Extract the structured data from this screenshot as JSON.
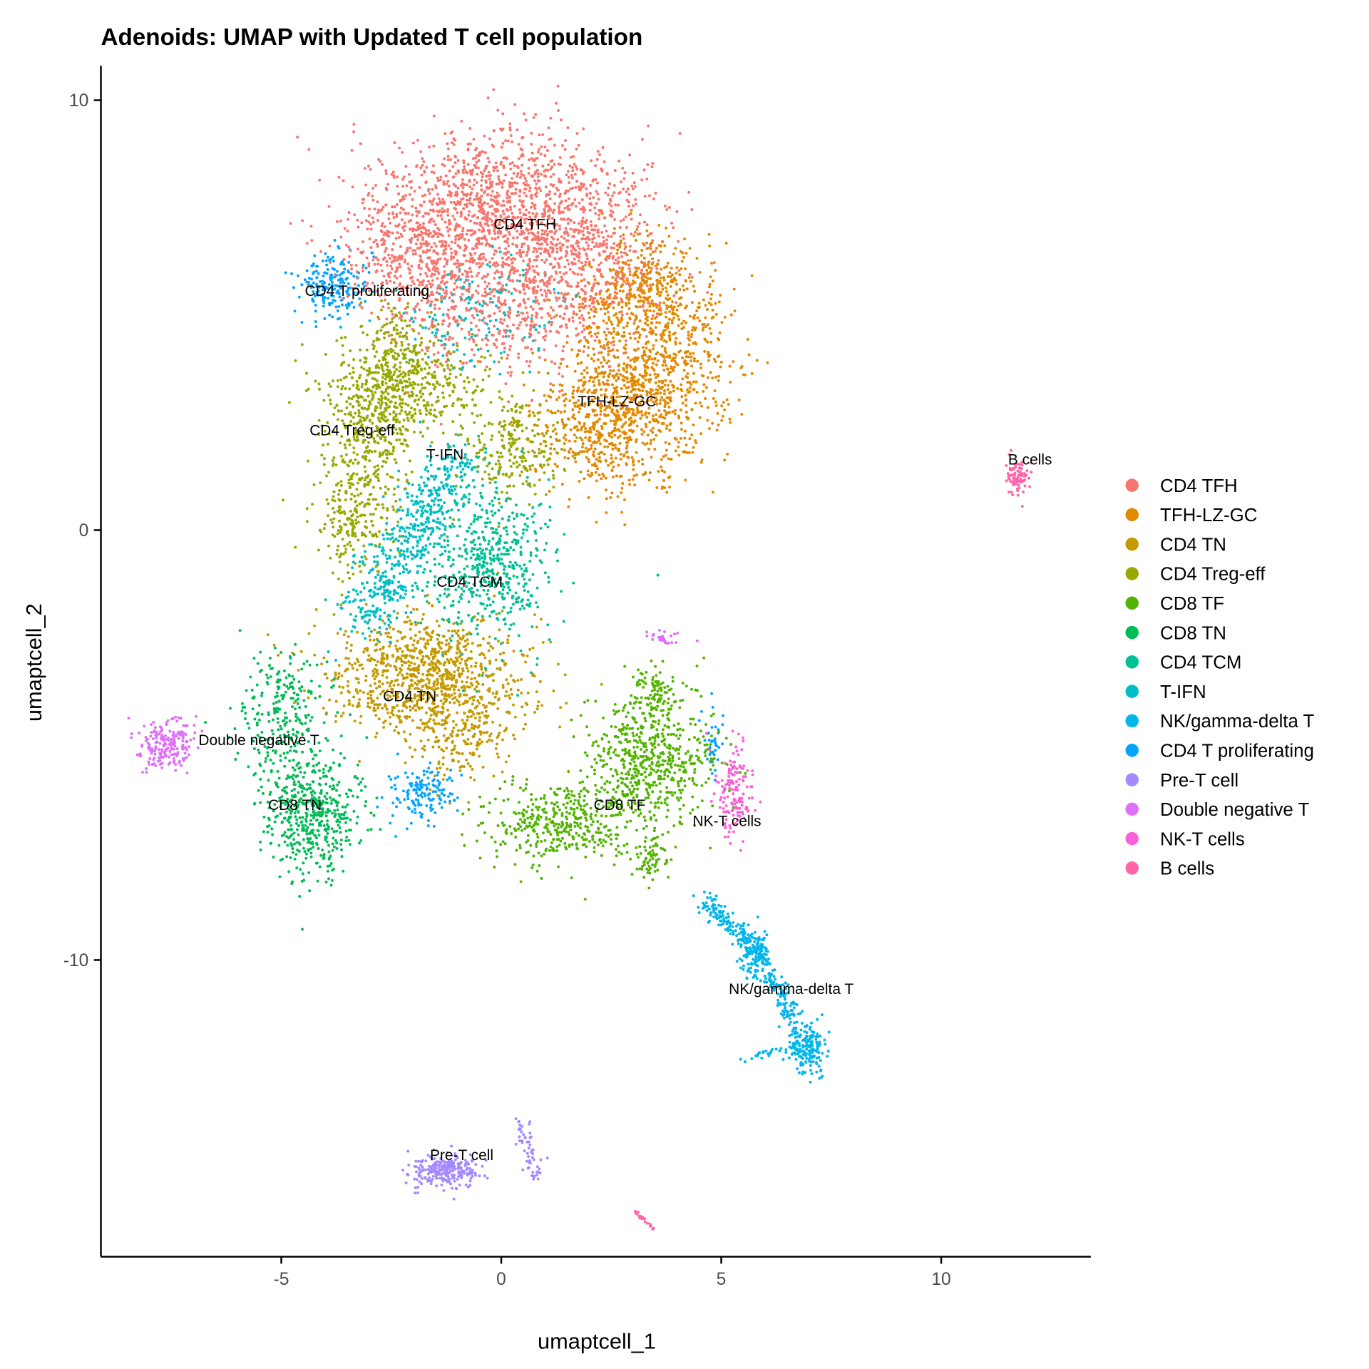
{
  "chart_data": {
    "type": "scatter",
    "title": "Adenoids: UMAP with Updated T cell population",
    "xlabel": "umaptcell_1",
    "ylabel": "umaptcell_2",
    "xlim": [
      -9.1,
      13.4
    ],
    "ylim": [
      -16.9,
      10.8
    ],
    "xticks": [
      -5,
      0,
      5,
      10
    ],
    "yticks": [
      -10,
      0,
      10
    ],
    "grid": false,
    "legend_position": "right",
    "clusters": [
      {
        "name": "CD4 TFH",
        "color": "#F8766D",
        "label_at": [
          0.54,
          7.12
        ],
        "components": [
          {
            "type": "blob",
            "center": [
              0.0,
              7.6
            ],
            "sd": [
              1.5,
              0.9
            ],
            "n": 1100
          },
          {
            "type": "blob",
            "center": [
              -1.8,
              6.5
            ],
            "sd": [
              0.9,
              0.8
            ],
            "n": 500
          },
          {
            "type": "blob",
            "center": [
              1.6,
              6.0
            ],
            "sd": [
              1.0,
              1.0
            ],
            "n": 600
          },
          {
            "type": "blob",
            "center": [
              -0.3,
              5.2
            ],
            "sd": [
              1.0,
              0.8
            ],
            "n": 350
          }
        ]
      },
      {
        "name": "TFH-LZ-GC",
        "color": "#E38900",
        "label_at": [
          2.63,
          3.0
        ],
        "components": [
          {
            "type": "blob",
            "center": [
              3.4,
              4.0
            ],
            "sd": [
              0.9,
              1.1
            ],
            "n": 900
          },
          {
            "type": "blob",
            "center": [
              2.4,
              2.3
            ],
            "sd": [
              0.9,
              0.7
            ],
            "n": 500
          },
          {
            "type": "blob",
            "center": [
              3.2,
              5.8
            ],
            "sd": [
              0.6,
              0.6
            ],
            "n": 200
          }
        ]
      },
      {
        "name": "CD4 TN",
        "color": "#C49A00",
        "label_at": [
          -2.08,
          -3.86
        ],
        "components": [
          {
            "type": "blob",
            "center": [
              -1.6,
              -3.4
            ],
            "sd": [
              1.1,
              0.7
            ],
            "n": 1000
          },
          {
            "type": "blob",
            "center": [
              -0.9,
              -4.9
            ],
            "sd": [
              0.5,
              0.5
            ],
            "n": 150
          }
        ]
      },
      {
        "name": "CD4 Treg-eff",
        "color": "#99A800",
        "label_at": [
          -3.39,
          2.33
        ],
        "components": [
          {
            "type": "strip",
            "from": [
              -2.3,
              4.8
            ],
            "to": [
              -3.5,
              -0.5
            ],
            "sd": 0.5,
            "n": 700
          },
          {
            "type": "blob",
            "center": [
              -2.2,
              3.3
            ],
            "sd": [
              0.9,
              0.6
            ],
            "n": 400
          },
          {
            "type": "blob",
            "center": [
              0.3,
              2.0
            ],
            "sd": [
              0.6,
              0.6
            ],
            "n": 250
          }
        ]
      },
      {
        "name": "CD8 TF",
        "color": "#53B400",
        "label_at": [
          2.69,
          -6.39
        ],
        "components": [
          {
            "type": "blob",
            "center": [
              3.4,
              -5.3
            ],
            "sd": [
              0.7,
              0.8
            ],
            "n": 600
          },
          {
            "type": "blob",
            "center": [
              1.4,
              -6.8
            ],
            "sd": [
              0.9,
              0.5
            ],
            "n": 400
          },
          {
            "type": "blob",
            "center": [
              3.5,
              -3.8
            ],
            "sd": [
              0.2,
              0.3
            ],
            "n": 80
          },
          {
            "type": "blob",
            "center": [
              3.4,
              -7.6
            ],
            "sd": [
              0.2,
              0.3
            ],
            "n": 60
          }
        ]
      },
      {
        "name": "CD8 TN",
        "color": "#00BC56",
        "label_at": [
          -4.69,
          -6.39
        ],
        "components": [
          {
            "type": "blob",
            "center": [
              -4.3,
              -6.6
            ],
            "sd": [
              0.55,
              0.7
            ],
            "n": 500
          },
          {
            "type": "blob",
            "center": [
              -5.0,
              -4.2
            ],
            "sd": [
              0.5,
              0.8
            ],
            "n": 250
          }
        ]
      },
      {
        "name": "CD4 TCM",
        "color": "#00C094",
        "label_at": [
          -0.72,
          -1.2
        ],
        "components": [
          {
            "type": "blob",
            "center": [
              -0.3,
              -0.8
            ],
            "sd": [
              0.7,
              0.9
            ],
            "n": 550
          }
        ]
      },
      {
        "name": "T-IFN",
        "color": "#00BFC4",
        "label_at": [
          -1.28,
          1.76
        ],
        "components": [
          {
            "type": "strip",
            "from": [
              -1.0,
              1.7
            ],
            "to": [
              -3.2,
              -2.2
            ],
            "sd": 0.35,
            "n": 550
          },
          {
            "type": "blob",
            "center": [
              -0.5,
              5.0
            ],
            "sd": [
              0.9,
              0.7
            ],
            "n": 150
          }
        ]
      },
      {
        "name": "NK/gamma-delta T",
        "color": "#00B6EB",
        "label_at": [
          6.59,
          -10.67
        ],
        "components": [
          {
            "type": "strip",
            "from": [
              4.6,
              -8.6
            ],
            "to": [
              6.0,
              -10.0
            ],
            "sd": 0.12,
            "n": 150
          },
          {
            "type": "blob",
            "center": [
              5.7,
              -9.8
            ],
            "sd": [
              0.2,
              0.3
            ],
            "n": 120
          },
          {
            "type": "strip",
            "from": [
              6.0,
              -10.2
            ],
            "to": [
              6.9,
              -12.0
            ],
            "sd": 0.12,
            "n": 130
          },
          {
            "type": "blob",
            "center": [
              7.0,
              -12.1
            ],
            "sd": [
              0.2,
              0.3
            ],
            "n": 150
          },
          {
            "type": "strip",
            "from": [
              5.5,
              -12.3
            ],
            "to": [
              6.8,
              -12.0
            ],
            "sd": 0.05,
            "n": 30
          }
        ]
      },
      {
        "name": "CD4 T proliferating",
        "color": "#06A4FF",
        "label_at": [
          -3.05,
          5.57
        ],
        "components": [
          {
            "type": "blob",
            "center": [
              -3.8,
              5.7
            ],
            "sd": [
              0.4,
              0.4
            ],
            "n": 200
          },
          {
            "type": "blob",
            "center": [
              -1.8,
              -6.1
            ],
            "sd": [
              0.35,
              0.3
            ],
            "n": 150
          },
          {
            "type": "blob",
            "center": [
              4.8,
              -5.0
            ],
            "sd": [
              0.1,
              0.5
            ],
            "n": 40
          }
        ]
      },
      {
        "name": "Pre-T cell",
        "color": "#A58AFF",
        "label_at": [
          -0.9,
          -14.53
        ],
        "components": [
          {
            "type": "blob",
            "center": [
              -1.3,
              -14.9
            ],
            "sd": [
              0.4,
              0.2
            ],
            "n": 250
          },
          {
            "type": "strip",
            "from": [
              0.4,
              -13.7
            ],
            "to": [
              0.8,
              -15.0
            ],
            "sd": 0.1,
            "n": 60
          }
        ]
      },
      {
        "name": "Double negative T",
        "color": "#DF70F8",
        "label_at": [
          -5.51,
          -4.88
        ],
        "components": [
          {
            "type": "blob",
            "center": [
              -7.6,
              -5.0
            ],
            "sd": [
              0.35,
              0.3
            ],
            "n": 200
          },
          {
            "type": "blob",
            "center": [
              3.7,
              -2.5
            ],
            "sd": [
              0.2,
              0.08
            ],
            "n": 30
          }
        ]
      },
      {
        "name": "NK-T cells",
        "color": "#FB61D7",
        "label_at": [
          5.13,
          -6.76
        ],
        "components": [
          {
            "type": "blob",
            "center": [
              5.3,
              -6.1
            ],
            "sd": [
              0.2,
              0.5
            ],
            "n": 150
          }
        ]
      },
      {
        "name": "B cells",
        "color": "#FF66A8",
        "label_at": [
          12.02,
          1.65
        ],
        "components": [
          {
            "type": "blob",
            "center": [
              11.75,
              1.25
            ],
            "sd": [
              0.12,
              0.2
            ],
            "n": 90
          },
          {
            "type": "strip",
            "from": [
              3.0,
              -15.8
            ],
            "to": [
              3.5,
              -16.3
            ],
            "sd": 0.02,
            "n": 20
          }
        ]
      }
    ]
  }
}
